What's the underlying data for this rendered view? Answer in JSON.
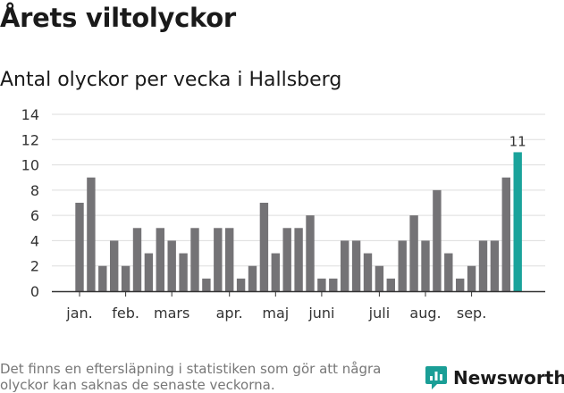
{
  "header": {
    "title": "Årets viltolyckor",
    "subtitle": "Antal olyckor per vecka i Hallsberg"
  },
  "footer": {
    "note": "Det finns en eftersläpning i statistiken som gör att några olyckor kan saknas de senaste veckorna.",
    "brand": "Newsworthy"
  },
  "colors": {
    "bar": "#747376",
    "highlight": "#1aa39b",
    "brand": "#1a9e96",
    "grid": "#dddddd",
    "axis": "#333333"
  },
  "icons": {
    "brand_logo": "bar-chart-speech-bubble-icon"
  },
  "chart_data": {
    "type": "bar",
    "title": "",
    "xlabel": "",
    "ylabel": "",
    "ylim": [
      0,
      14
    ],
    "yticks": [
      0,
      2,
      4,
      6,
      8,
      10,
      12,
      14
    ],
    "grid": true,
    "values": [
      7,
      9,
      2,
      4,
      2,
      5,
      3,
      5,
      4,
      3,
      5,
      1,
      5,
      5,
      1,
      2,
      7,
      3,
      5,
      5,
      6,
      1,
      1,
      4,
      4,
      3,
      2,
      1,
      4,
      6,
      4,
      8,
      3,
      1,
      2,
      4,
      4,
      9,
      11
    ],
    "highlight_index": 38,
    "highlight_label": "11",
    "months": [
      {
        "label": "jan.",
        "index": 0
      },
      {
        "label": "feb.",
        "index": 4
      },
      {
        "label": "mars",
        "index": 8
      },
      {
        "label": "apr.",
        "index": 13
      },
      {
        "label": "maj",
        "index": 17
      },
      {
        "label": "juni",
        "index": 21
      },
      {
        "label": "juli",
        "index": 26
      },
      {
        "label": "aug.",
        "index": 30
      },
      {
        "label": "sep.",
        "index": 34
      }
    ]
  }
}
